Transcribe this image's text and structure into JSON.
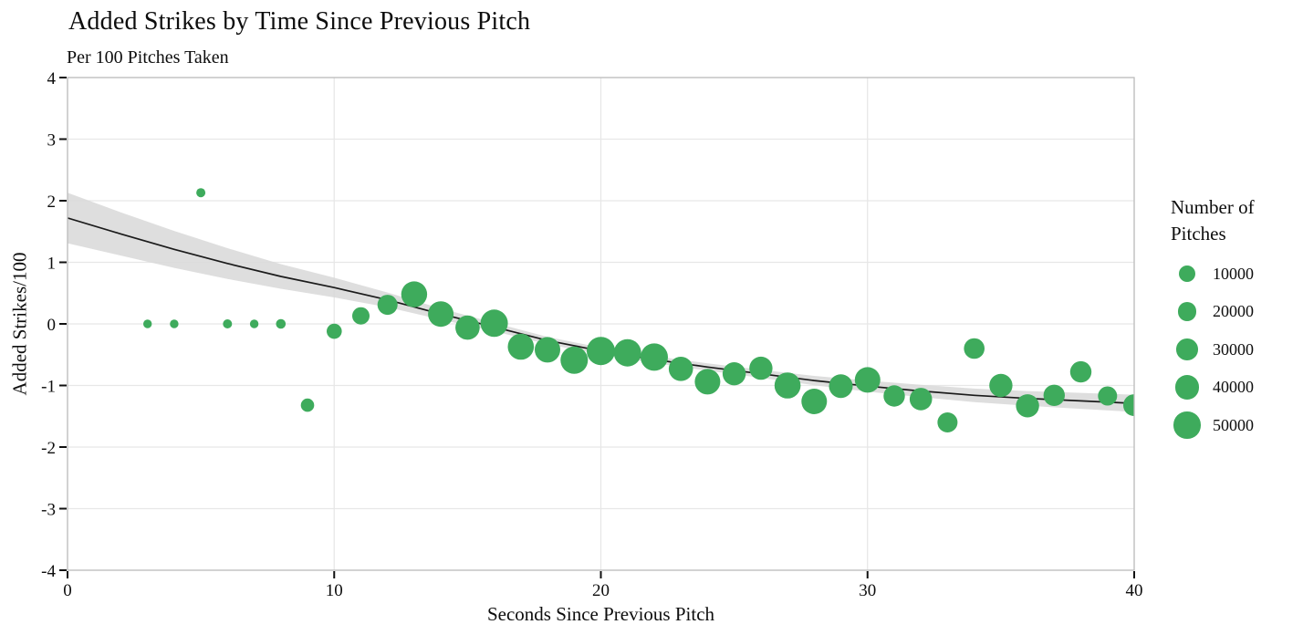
{
  "chart_data": {
    "type": "scatter",
    "title": "Added Strikes by Time Since Previous Pitch",
    "subtitle": "Per 100 Pitches Taken",
    "xlabel": "Seconds Since Previous Pitch",
    "ylabel": "Added Strikes/100",
    "xlim": [
      0,
      40
    ],
    "ylim": [
      -4,
      4
    ],
    "x_ticks": [
      0,
      10,
      20,
      30,
      40
    ],
    "x_tick_labels": [
      "0",
      "10",
      "20",
      "30",
      "40"
    ],
    "y_ticks": [
      -4,
      -3,
      -2,
      -1,
      0,
      1,
      2,
      3,
      4
    ],
    "y_tick_labels": [
      "-4",
      "-3",
      "-2",
      "-1",
      "0",
      "1",
      "2",
      "3",
      "4"
    ],
    "grid": true,
    "colors": {
      "point": "#3eab5c",
      "trend_line": "#1b1b1b",
      "band": "#d8d8d8",
      "grid": "#e7e7e7",
      "panel_border": "#bdbdbd",
      "text": "#0d0d0d",
      "tick": "#111111"
    },
    "points": [
      {
        "x": 3,
        "y": 0.0,
        "r": 4.7,
        "n_pitches_approx": 1500
      },
      {
        "x": 4,
        "y": 0.0,
        "r": 4.7,
        "n_pitches_approx": 1500
      },
      {
        "x": 5,
        "y": 2.13,
        "r": 5.0,
        "n_pitches_approx": 2000
      },
      {
        "x": 6,
        "y": 0.0,
        "r": 5.0,
        "n_pitches_approx": 2000
      },
      {
        "x": 7,
        "y": 0.0,
        "r": 4.7,
        "n_pitches_approx": 1500
      },
      {
        "x": 8,
        "y": 0.0,
        "r": 5.3,
        "n_pitches_approx": 2500
      },
      {
        "x": 9,
        "y": -1.32,
        "r": 7.3,
        "n_pitches_approx": 5000
      },
      {
        "x": 10,
        "y": -0.12,
        "r": 8.3,
        "n_pitches_approx": 7500
      },
      {
        "x": 11,
        "y": 0.13,
        "r": 9.5,
        "n_pitches_approx": 13000
      },
      {
        "x": 12,
        "y": 0.31,
        "r": 11.0,
        "n_pitches_approx": 25000
      },
      {
        "x": 13,
        "y": 0.48,
        "r": 14.2,
        "n_pitches_approx": 46000
      },
      {
        "x": 14,
        "y": 0.16,
        "r": 14.0,
        "n_pitches_approx": 45000
      },
      {
        "x": 15,
        "y": -0.06,
        "r": 13.3,
        "n_pitches_approx": 40000
      },
      {
        "x": 16,
        "y": 0.01,
        "r": 15.0,
        "n_pitches_approx": 52000
      },
      {
        "x": 17,
        "y": -0.37,
        "r": 14.3,
        "n_pitches_approx": 47000
      },
      {
        "x": 18,
        "y": -0.42,
        "r": 14.0,
        "n_pitches_approx": 45000
      },
      {
        "x": 19,
        "y": -0.59,
        "r": 15.0,
        "n_pitches_approx": 52000
      },
      {
        "x": 20,
        "y": -0.44,
        "r": 15.5,
        "n_pitches_approx": 56000
      },
      {
        "x": 21,
        "y": -0.47,
        "r": 15.0,
        "n_pitches_approx": 52000
      },
      {
        "x": 22,
        "y": -0.54,
        "r": 15.0,
        "n_pitches_approx": 52000
      },
      {
        "x": 23,
        "y": -0.73,
        "r": 13.3,
        "n_pitches_approx": 40000
      },
      {
        "x": 24,
        "y": -0.94,
        "r": 14.0,
        "n_pitches_approx": 45000
      },
      {
        "x": 25,
        "y": -0.81,
        "r": 12.7,
        "n_pitches_approx": 35000
      },
      {
        "x": 26,
        "y": -0.72,
        "r": 12.7,
        "n_pitches_approx": 35000
      },
      {
        "x": 27,
        "y": -1.0,
        "r": 14.3,
        "n_pitches_approx": 47000
      },
      {
        "x": 28,
        "y": -1.26,
        "r": 14.0,
        "n_pitches_approx": 45000
      },
      {
        "x": 29,
        "y": -1.01,
        "r": 13.0,
        "n_pitches_approx": 38000
      },
      {
        "x": 30,
        "y": -0.91,
        "r": 14.0,
        "n_pitches_approx": 45000
      },
      {
        "x": 31,
        "y": -1.17,
        "r": 11.7,
        "n_pitches_approx": 28000
      },
      {
        "x": 32,
        "y": -1.22,
        "r": 12.3,
        "n_pitches_approx": 32000
      },
      {
        "x": 33,
        "y": -1.6,
        "r": 11.0,
        "n_pitches_approx": 25000
      },
      {
        "x": 34,
        "y": -0.4,
        "r": 11.3,
        "n_pitches_approx": 26000
      },
      {
        "x": 35,
        "y": -1.0,
        "r": 12.7,
        "n_pitches_approx": 35000
      },
      {
        "x": 36,
        "y": -1.33,
        "r": 12.7,
        "n_pitches_approx": 35000
      },
      {
        "x": 37,
        "y": -1.16,
        "r": 11.7,
        "n_pitches_approx": 28000
      },
      {
        "x": 38,
        "y": -0.78,
        "r": 11.7,
        "n_pitches_approx": 28000
      },
      {
        "x": 39,
        "y": -1.17,
        "r": 10.5,
        "n_pitches_approx": 22000
      },
      {
        "x": 40,
        "y": -1.32,
        "r": 12.0,
        "n_pitches_approx": 30000
      }
    ],
    "trend": [
      {
        "x": 0,
        "y": 1.72,
        "hw": 0.41
      },
      {
        "x": 2,
        "y": 1.46,
        "hw": 0.35
      },
      {
        "x": 4,
        "y": 1.21,
        "hw": 0.3
      },
      {
        "x": 6,
        "y": 0.98,
        "hw": 0.25
      },
      {
        "x": 8,
        "y": 0.77,
        "hw": 0.2
      },
      {
        "x": 10,
        "y": 0.59,
        "hw": 0.16
      },
      {
        "x": 12,
        "y": 0.39,
        "hw": 0.12
      },
      {
        "x": 14,
        "y": 0.16,
        "hw": 0.09
      },
      {
        "x": 16,
        "y": -0.05,
        "hw": 0.07
      },
      {
        "x": 18,
        "y": -0.27,
        "hw": 0.06
      },
      {
        "x": 20,
        "y": -0.44,
        "hw": 0.055
      },
      {
        "x": 22,
        "y": -0.58,
        "hw": 0.055
      },
      {
        "x": 24,
        "y": -0.7,
        "hw": 0.06
      },
      {
        "x": 26,
        "y": -0.81,
        "hw": 0.065
      },
      {
        "x": 28,
        "y": -0.92,
        "hw": 0.075
      },
      {
        "x": 30,
        "y": -1.01,
        "hw": 0.09
      },
      {
        "x": 32,
        "y": -1.09,
        "hw": 0.1
      },
      {
        "x": 34,
        "y": -1.16,
        "hw": 0.11
      },
      {
        "x": 36,
        "y": -1.21,
        "hw": 0.12
      },
      {
        "x": 38,
        "y": -1.25,
        "hw": 0.13
      },
      {
        "x": 40,
        "y": -1.29,
        "hw": 0.14
      }
    ],
    "legend": {
      "title_lines": [
        "Number of",
        "Pitches"
      ],
      "entries": [
        {
          "label": "10000",
          "r": 9.0
        },
        {
          "label": "20000",
          "r": 10.2
        },
        {
          "label": "30000",
          "r": 11.8
        },
        {
          "label": "40000",
          "r": 13.3
        },
        {
          "label": "50000",
          "r": 14.6
        }
      ],
      "position": "right"
    }
  }
}
